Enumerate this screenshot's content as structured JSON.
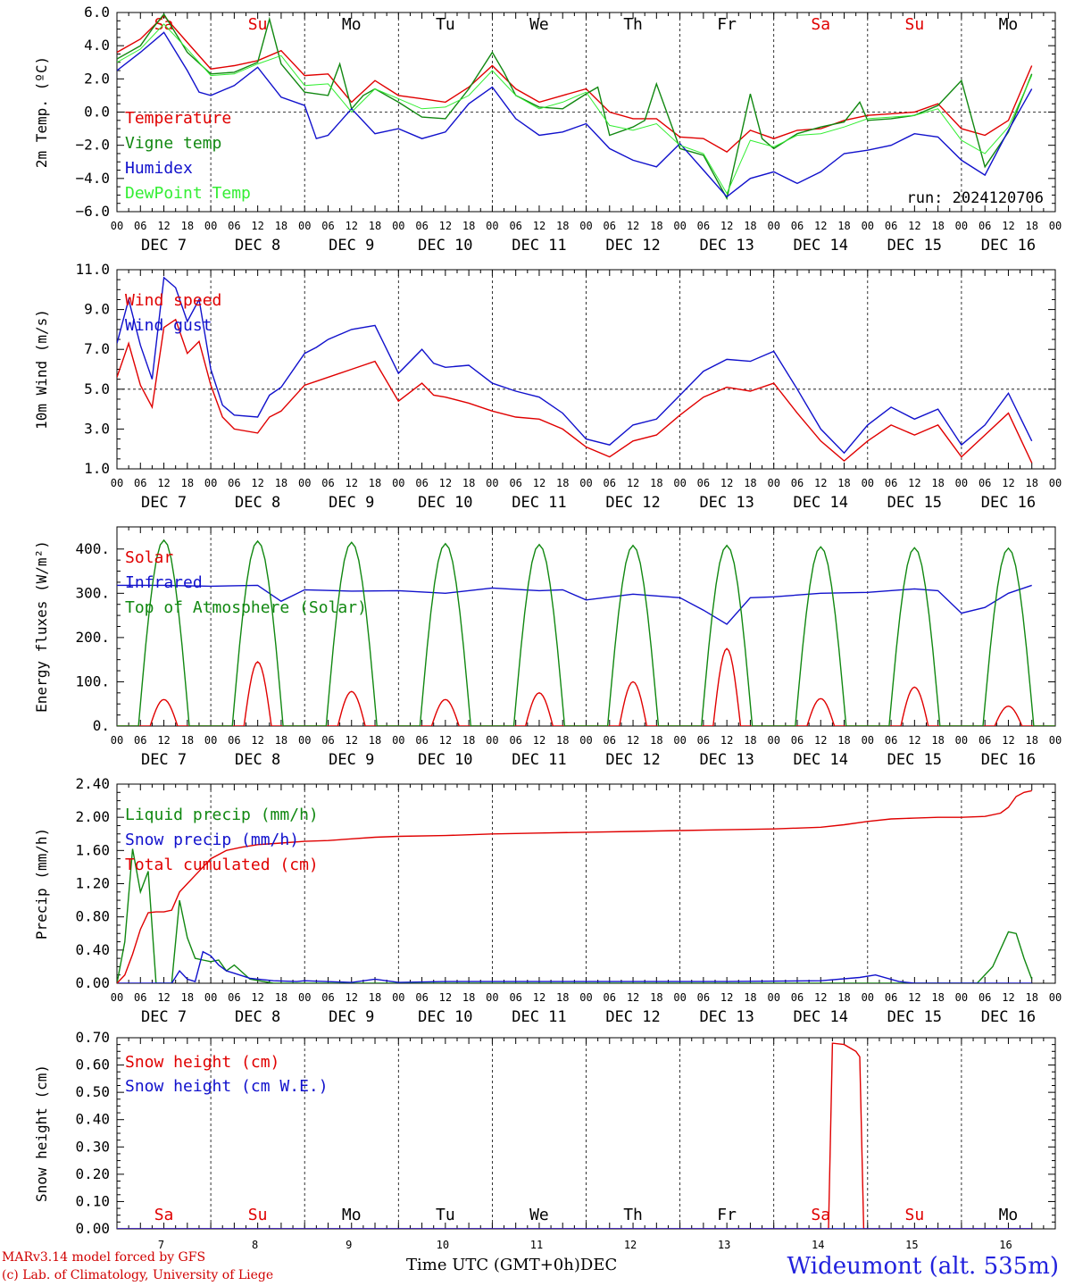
{
  "footer": {
    "model": "MARv3.14 model forced by GFS",
    "copyright": "(c) Lab. of Climatology, University of Liege",
    "xaxis_label": "Time UTC (GMT+0h)",
    "month": "DEC",
    "station": "Wideumont (alt. 535m)"
  },
  "colors": {
    "red": "#e00000",
    "green": "#118811",
    "blue": "#1111cc",
    "lightgreen": "#33ee33"
  },
  "days": [
    "7",
    "8",
    "9",
    "10",
    "11",
    "12",
    "13",
    "14",
    "15",
    "16"
  ],
  "weekdays": [
    {
      "label": "Sa",
      "weekend": true
    },
    {
      "label": "Su",
      "weekend": true
    },
    {
      "label": "Mo",
      "weekend": false
    },
    {
      "label": "Tu",
      "weekend": false
    },
    {
      "label": "We",
      "weekend": false
    },
    {
      "label": "Th",
      "weekend": false
    },
    {
      "label": "Fr",
      "weekend": false
    },
    {
      "label": "Sa",
      "weekend": true
    },
    {
      "label": "Su",
      "weekend": true
    },
    {
      "label": "Mo",
      "weekend": false
    }
  ],
  "hour_ticks": [
    "00",
    "06",
    "12",
    "18"
  ],
  "final_tick": "00",
  "month_label": "DEC",
  "chart_data": [
    {
      "type": "line",
      "id": "temp",
      "ylabel": "2m Temp. (ºC)",
      "ylim": [
        -6,
        6
      ],
      "yticks": [
        -6,
        -4,
        -2,
        0,
        2,
        4,
        6
      ],
      "ytick_labels": [
        "−6.0",
        "−4.0",
        "−2.0",
        "0.0",
        "2.0",
        "4.0",
        "6.0"
      ],
      "ref_line": 0,
      "annotation": "run: 2024120706",
      "x_unit": "hours since 2024-12-07 00 UTC",
      "series": [
        {
          "name": "Temperature",
          "color": "red",
          "x": [
            0,
            6,
            12,
            18,
            24,
            30,
            36,
            42,
            48,
            54,
            60,
            66,
            72,
            78,
            84,
            90,
            96,
            102,
            108,
            114,
            120,
            126,
            132,
            138,
            144,
            150,
            156,
            162,
            168,
            174,
            180,
            186,
            192,
            198,
            204,
            210,
            216,
            222,
            228,
            234
          ],
          "y": [
            3.6,
            4.4,
            5.8,
            4.2,
            2.6,
            2.8,
            3.1,
            3.7,
            2.2,
            2.3,
            0.6,
            1.9,
            1.0,
            0.8,
            0.6,
            1.5,
            2.8,
            1.4,
            0.6,
            1.0,
            1.4,
            0.0,
            -0.4,
            -0.4,
            -1.5,
            -1.6,
            -2.4,
            -1.1,
            -1.6,
            -1.1,
            -1.0,
            -0.5,
            -0.2,
            -0.1,
            0.0,
            0.5,
            -1.0,
            -1.4,
            -0.5,
            2.8
          ]
        },
        {
          "name": "Vigne temp",
          "color": "green",
          "x": [
            0,
            6,
            9,
            12,
            18,
            24,
            30,
            36,
            39,
            42,
            48,
            54,
            57,
            60,
            63,
            66,
            72,
            78,
            84,
            90,
            96,
            99,
            102,
            108,
            114,
            120,
            123,
            126,
            132,
            135,
            138,
            144,
            150,
            156,
            162,
            165,
            168,
            174,
            180,
            186,
            190,
            192,
            198,
            204,
            210,
            216,
            222,
            228,
            234
          ],
          "y": [
            3.2,
            4.0,
            5.0,
            5.9,
            3.6,
            2.3,
            2.4,
            3.0,
            5.6,
            2.9,
            1.2,
            1.0,
            2.9,
            0.2,
            1.0,
            1.4,
            0.6,
            -0.3,
            -0.4,
            1.4,
            3.6,
            2.4,
            1.0,
            0.3,
            0.2,
            1.1,
            1.5,
            -1.4,
            -0.9,
            -0.5,
            1.7,
            -2.2,
            -2.6,
            -5.2,
            1.1,
            -1.6,
            -2.2,
            -1.3,
            -0.9,
            -0.6,
            0.6,
            -0.5,
            -0.4,
            -0.2,
            0.4,
            1.9,
            -3.3,
            -1.2,
            2.3
          ]
        },
        {
          "name": "Humidex",
          "color": "blue",
          "x": [
            0,
            6,
            12,
            18,
            21,
            24,
            30,
            36,
            42,
            48,
            51,
            54,
            60,
            66,
            72,
            78,
            84,
            90,
            96,
            102,
            108,
            114,
            120,
            126,
            132,
            138,
            144,
            150,
            156,
            162,
            168,
            174,
            180,
            186,
            192,
            198,
            204,
            210,
            216,
            222,
            228,
            234
          ],
          "y": [
            2.5,
            3.6,
            4.8,
            2.5,
            1.2,
            1.0,
            1.6,
            2.7,
            0.9,
            0.4,
            -1.6,
            -1.4,
            0.2,
            -1.3,
            -1.0,
            -1.6,
            -1.2,
            0.5,
            1.5,
            -0.4,
            -1.4,
            -1.2,
            -0.7,
            -2.2,
            -2.9,
            -3.3,
            -1.9,
            -3.5,
            -5.1,
            -4.0,
            -3.6,
            -4.3,
            -3.6,
            -2.5,
            -2.3,
            -2.0,
            -1.3,
            -1.5,
            -2.9,
            -3.8,
            -1.1,
            1.4
          ]
        },
        {
          "name": "DewPoint Temp",
          "color": "lightgreen",
          "x": [
            0,
            6,
            12,
            18,
            24,
            30,
            36,
            42,
            48,
            54,
            60,
            66,
            72,
            78,
            84,
            90,
            96,
            102,
            108,
            114,
            120,
            126,
            132,
            138,
            144,
            150,
            156,
            162,
            168,
            174,
            180,
            186,
            192,
            198,
            204,
            210,
            216,
            222,
            228,
            234
          ],
          "y": [
            3.0,
            3.8,
            5.3,
            3.8,
            2.2,
            2.3,
            2.9,
            3.4,
            1.6,
            1.7,
            0.0,
            1.4,
            0.8,
            0.2,
            0.3,
            1.0,
            2.5,
            1.0,
            0.2,
            0.6,
            1.2,
            -0.8,
            -1.1,
            -0.7,
            -2.0,
            -2.5,
            -4.9,
            -1.7,
            -2.1,
            -1.4,
            -1.3,
            -0.9,
            -0.4,
            -0.3,
            -0.2,
            0.2,
            -1.7,
            -2.5,
            -0.9,
            2.2
          ]
        }
      ]
    },
    {
      "type": "line",
      "id": "wind",
      "ylabel": "10m Wind (m/s)",
      "ylim": [
        1,
        11
      ],
      "yticks": [
        1,
        3,
        5,
        7,
        9,
        11
      ],
      "ytick_labels": [
        "1.0",
        "3.0",
        "5.0",
        "7.0",
        "9.0",
        "11.0"
      ],
      "ref_line": 5,
      "series": [
        {
          "name": "Wind speed",
          "color": "red",
          "x": [
            0,
            3,
            6,
            9,
            12,
            15,
            18,
            21,
            24,
            27,
            30,
            36,
            39,
            42,
            48,
            51,
            54,
            60,
            66,
            72,
            78,
            81,
            84,
            90,
            96,
            102,
            108,
            114,
            120,
            126,
            132,
            138,
            144,
            150,
            156,
            162,
            168,
            174,
            180,
            186,
            192,
            198,
            204,
            210,
            216,
            222,
            228,
            234
          ],
          "y": [
            5.6,
            7.3,
            5.2,
            4.1,
            8.1,
            8.5,
            6.8,
            7.4,
            5.2,
            3.6,
            3.0,
            2.8,
            3.6,
            3.9,
            5.2,
            5.4,
            5.6,
            6.0,
            6.4,
            4.4,
            5.3,
            4.7,
            4.6,
            4.3,
            3.9,
            3.6,
            3.5,
            3.0,
            2.1,
            1.6,
            2.4,
            2.7,
            3.7,
            4.6,
            5.1,
            4.9,
            5.3,
            3.8,
            2.4,
            1.4,
            2.4,
            3.2,
            2.7,
            3.2,
            1.6,
            2.7,
            3.8,
            1.3
          ]
        },
        {
          "name": "Wind gust",
          "color": "blue",
          "x": [
            0,
            3,
            6,
            9,
            12,
            15,
            18,
            21,
            24,
            27,
            30,
            36,
            39,
            42,
            48,
            51,
            54,
            60,
            66,
            72,
            78,
            81,
            84,
            90,
            96,
            102,
            108,
            114,
            120,
            126,
            132,
            138,
            144,
            150,
            156,
            162,
            168,
            174,
            180,
            186,
            192,
            198,
            204,
            210,
            216,
            222,
            228,
            234
          ],
          "y": [
            7.3,
            9.5,
            7.2,
            5.5,
            10.6,
            10.1,
            8.4,
            9.5,
            6.0,
            4.2,
            3.7,
            3.6,
            4.7,
            5.1,
            6.8,
            7.1,
            7.5,
            8.0,
            8.2,
            5.8,
            7.0,
            6.3,
            6.1,
            6.2,
            5.3,
            4.9,
            4.6,
            3.8,
            2.5,
            2.2,
            3.2,
            3.5,
            4.7,
            5.9,
            6.5,
            6.4,
            6.9,
            5.0,
            3.0,
            1.8,
            3.2,
            4.1,
            3.5,
            4.0,
            2.2,
            3.2,
            4.8,
            2.4
          ]
        }
      ]
    },
    {
      "type": "line",
      "id": "energy",
      "ylabel": "Energy fluxes (W/m²)",
      "ylim": [
        0,
        450
      ],
      "yticks": [
        0,
        100,
        200,
        300,
        400
      ],
      "ytick_labels": [
        "0.",
        "100.",
        "200.",
        "300.",
        "400."
      ],
      "series": [
        {
          "name": "Solar",
          "color": "red",
          "peaks": [
            60,
            145,
            78,
            60,
            75,
            100,
            175,
            62,
            88,
            45
          ]
        },
        {
          "name": "Infrared",
          "color": "blue",
          "x": [
            0,
            12,
            24,
            36,
            42,
            48,
            60,
            72,
            84,
            96,
            108,
            114,
            120,
            132,
            144,
            150,
            156,
            162,
            168,
            180,
            192,
            204,
            210,
            216,
            222,
            228,
            234
          ],
          "y": [
            318,
            318,
            316,
            318,
            282,
            308,
            305,
            306,
            300,
            312,
            306,
            308,
            285,
            298,
            290,
            262,
            230,
            290,
            292,
            300,
            302,
            310,
            306,
            255,
            268,
            300,
            318
          ]
        },
        {
          "name": "Top of Atmosphere (Solar)",
          "color": "green",
          "peaks": [
            420,
            418,
            415,
            412,
            410,
            408,
            408,
            405,
            403,
            402
          ]
        }
      ]
    },
    {
      "type": "line",
      "id": "precip",
      "ylabel": "Precip (mm/h)",
      "ylim": [
        0,
        2.4
      ],
      "yticks": [
        0,
        0.4,
        0.8,
        1.2,
        1.6,
        2.0,
        2.4
      ],
      "ytick_labels": [
        "0.00",
        "0.40",
        "0.80",
        "1.20",
        "1.60",
        "2.00",
        "2.40"
      ],
      "series": [
        {
          "name": "Liquid precip (mm/h)",
          "color": "green",
          "x": [
            0,
            2,
            4,
            6,
            8,
            10,
            12,
            14,
            16,
            18,
            20,
            22,
            24,
            26,
            28,
            30,
            34,
            40,
            48,
            60,
            84,
            120,
            156,
            192,
            220,
            224,
            228,
            230,
            232,
            234
          ],
          "y": [
            0,
            0.5,
            1.62,
            1.1,
            1.35,
            0.0,
            0.0,
            0.0,
            1.0,
            0.55,
            0.3,
            0.28,
            0.26,
            0.28,
            0.15,
            0.22,
            0.05,
            0.0,
            0.0,
            0.0,
            0.0,
            0.0,
            0.0,
            0.0,
            0.0,
            0.2,
            0.62,
            0.6,
            0.3,
            0.05
          ]
        },
        {
          "name": "Snow precip (mm/h)",
          "color": "blue",
          "x": [
            0,
            14,
            16,
            18,
            20,
            22,
            24,
            26,
            28,
            30,
            34,
            40,
            46,
            48,
            60,
            66,
            72,
            84,
            96,
            120,
            156,
            180,
            190,
            194,
            200,
            204,
            234
          ],
          "y": [
            0,
            0,
            0.15,
            0.05,
            0.02,
            0.38,
            0.33,
            0.22,
            0.15,
            0.12,
            0.06,
            0.03,
            0.02,
            0.03,
            0.01,
            0.05,
            0.01,
            0.02,
            0.02,
            0.02,
            0.02,
            0.03,
            0.07,
            0.1,
            0.02,
            0.0,
            0.0
          ]
        },
        {
          "name": "Total cumulated (cm)",
          "color": "red",
          "x": [
            0,
            2,
            4,
            6,
            8,
            10,
            12,
            14,
            16,
            18,
            20,
            24,
            28,
            32,
            36,
            42,
            48,
            54,
            60,
            66,
            72,
            84,
            96,
            108,
            120,
            132,
            144,
            156,
            168,
            180,
            186,
            192,
            198,
            204,
            210,
            216,
            222,
            226,
            228,
            230,
            232,
            234
          ],
          "y": [
            0,
            0.1,
            0.35,
            0.65,
            0.85,
            0.86,
            0.86,
            0.88,
            1.1,
            1.2,
            1.3,
            1.5,
            1.6,
            1.64,
            1.67,
            1.69,
            1.71,
            1.72,
            1.74,
            1.76,
            1.77,
            1.78,
            1.8,
            1.81,
            1.82,
            1.83,
            1.84,
            1.85,
            1.86,
            1.88,
            1.91,
            1.95,
            1.98,
            1.99,
            2.0,
            2.0,
            2.01,
            2.05,
            2.12,
            2.25,
            2.3,
            2.32
          ]
        }
      ]
    },
    {
      "type": "line",
      "id": "snow",
      "ylabel": "Snow height (cm)",
      "ylim": [
        0,
        0.7
      ],
      "yticks": [
        0,
        0.1,
        0.2,
        0.3,
        0.4,
        0.5,
        0.6,
        0.7
      ],
      "ytick_labels": [
        "0.00",
        "0.10",
        "0.20",
        "0.30",
        "0.40",
        "0.50",
        "0.60",
        "0.70"
      ],
      "series": [
        {
          "name": "Snow height (cm)",
          "color": "red",
          "x": [
            0,
            182,
            183,
            186,
            189,
            190,
            191,
            234
          ],
          "y": [
            0,
            0,
            0.68,
            0.675,
            0.65,
            0.63,
            0,
            0
          ]
        },
        {
          "name": "Snow height (cm W.E.)",
          "color": "blue",
          "x": [
            0,
            234
          ],
          "y": [
            0,
            0
          ]
        }
      ]
    }
  ]
}
